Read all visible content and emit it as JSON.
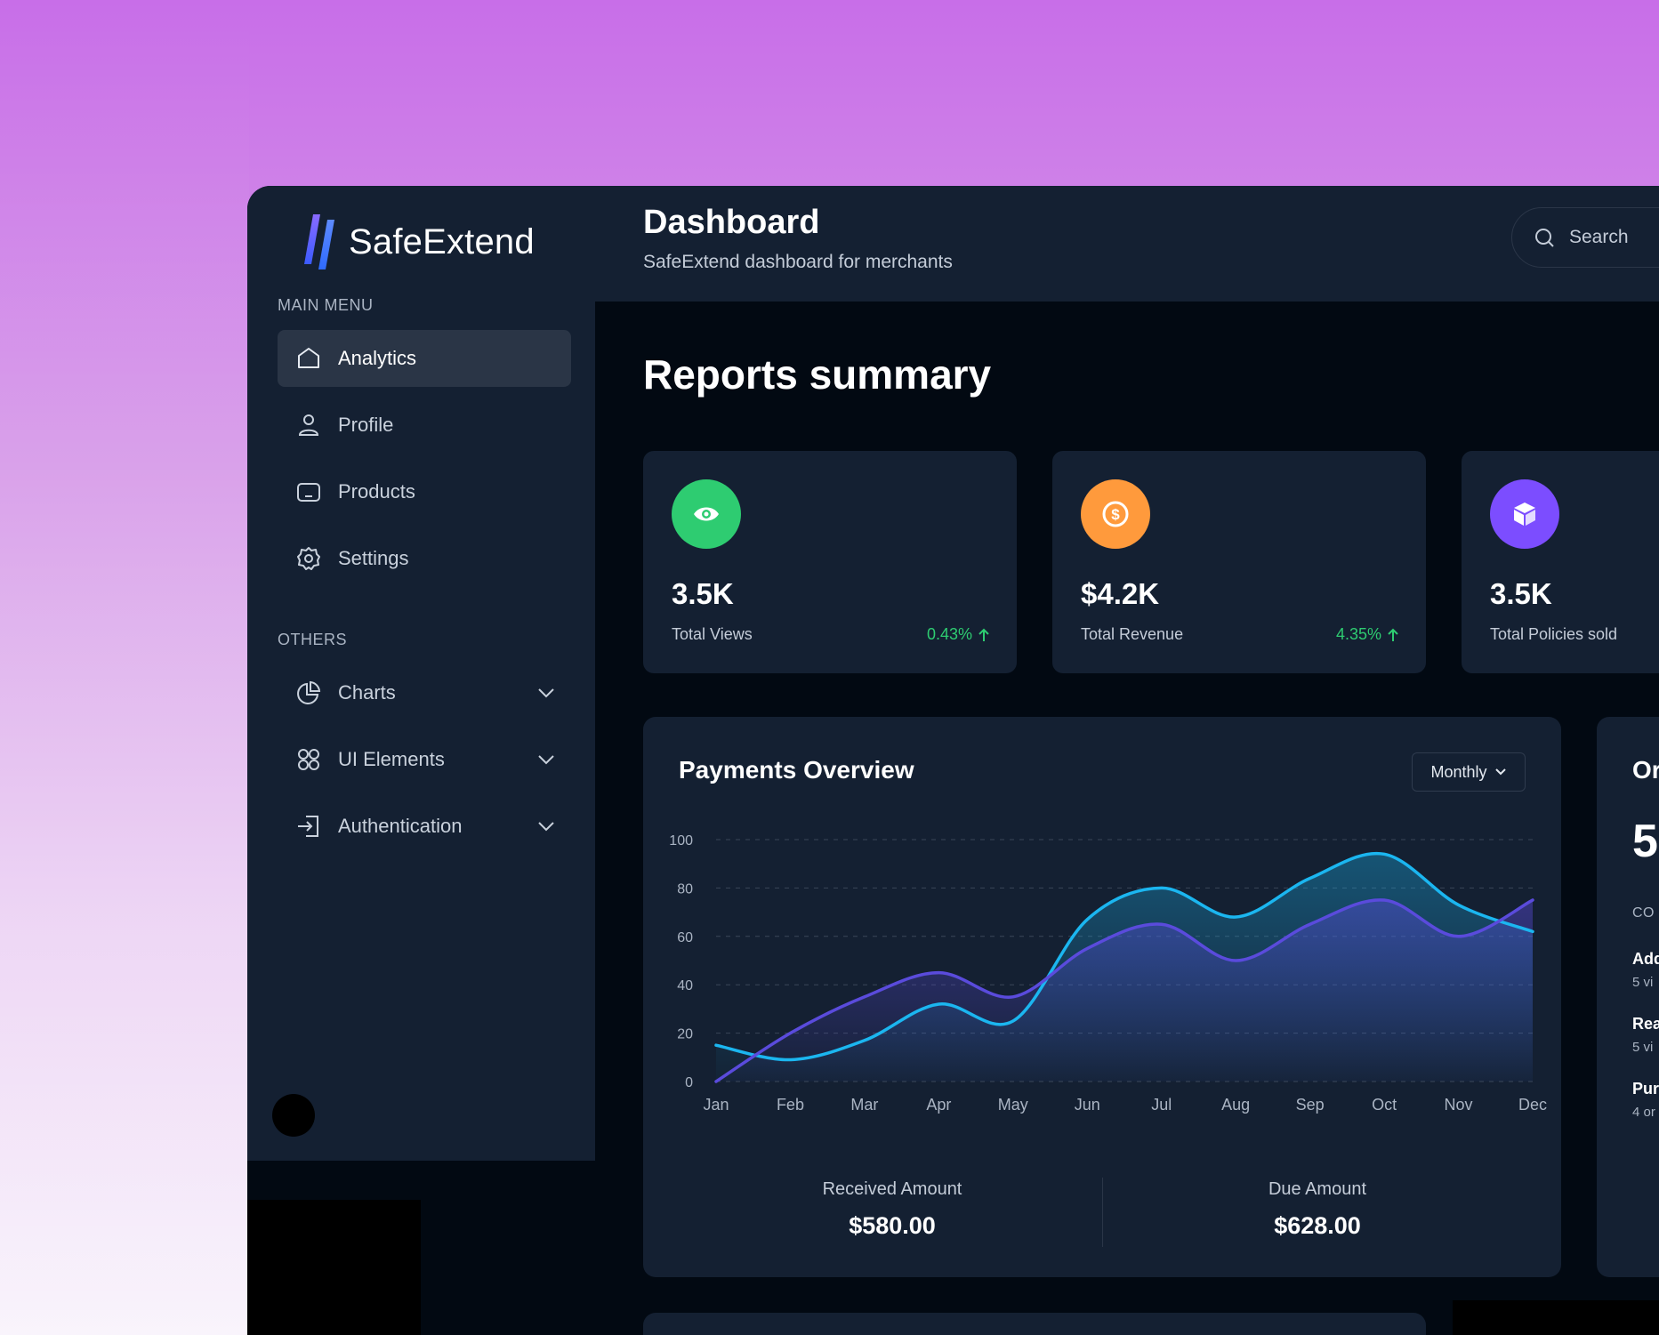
{
  "brand": {
    "name": "SafeExtend"
  },
  "sidebar": {
    "main_menu_title": "MAIN MENU",
    "main_items": [
      {
        "label": "Analytics",
        "icon": "home-icon",
        "active": true
      },
      {
        "label": "Profile",
        "icon": "user-icon"
      },
      {
        "label": "Products",
        "icon": "product-icon"
      },
      {
        "label": "Settings",
        "icon": "gear-icon"
      }
    ],
    "others_title": "OTHERS",
    "other_items": [
      {
        "label": "Charts",
        "icon": "pie-chart-icon"
      },
      {
        "label": "UI Elements",
        "icon": "grid-icon"
      },
      {
        "label": "Authentication",
        "icon": "sign-in-icon"
      }
    ]
  },
  "header": {
    "title": "Dashboard",
    "subtitle": "SafeExtend dashboard for merchants",
    "search_placeholder": "Search"
  },
  "reports": {
    "title": "Reports summary",
    "cards": [
      {
        "value": "3.5K",
        "label": "Total Views",
        "change": "0.43%",
        "icon": "eye-icon",
        "color": "#2ecc71"
      },
      {
        "value": "$4.2K",
        "label": "Total Revenue",
        "change": "4.35%",
        "icon": "dollar-icon",
        "color": "#ff9a3c"
      },
      {
        "value": "3.5K",
        "label": "Total Policies sold",
        "icon": "cube-icon",
        "color": "#7c4dff"
      }
    ]
  },
  "payments": {
    "title": "Payments Overview",
    "period": "Monthly",
    "received_label": "Received Amount",
    "received_value": "$580.00",
    "due_label": "Due Amount",
    "due_value": "$628.00"
  },
  "chart_data": {
    "type": "area",
    "categories": [
      "Jan",
      "Feb",
      "Mar",
      "Apr",
      "May",
      "Jun",
      "Jul",
      "Aug",
      "Sep",
      "Oct",
      "Nov",
      "Dec"
    ],
    "yticks": [
      0,
      20,
      40,
      60,
      80,
      100
    ],
    "ylim": [
      0,
      100
    ],
    "grid": true,
    "series": [
      {
        "color": "#1bb6f0",
        "values": [
          15,
          9,
          17,
          32,
          25,
          67,
          80,
          68,
          84,
          94,
          73,
          62
        ]
      },
      {
        "color": "#5a4bdc",
        "values": [
          0,
          20,
          35,
          45,
          35,
          55,
          65,
          50,
          65,
          75,
          60,
          75
        ]
      }
    ]
  },
  "side_card": {
    "title": "Or",
    "big_value": "5",
    "caption": "CO",
    "rows": [
      {
        "title": "Add",
        "sub": "5 vi"
      },
      {
        "title": "Rea",
        "sub": "5 vi"
      },
      {
        "title": "Pur",
        "sub": "4 or"
      }
    ]
  }
}
